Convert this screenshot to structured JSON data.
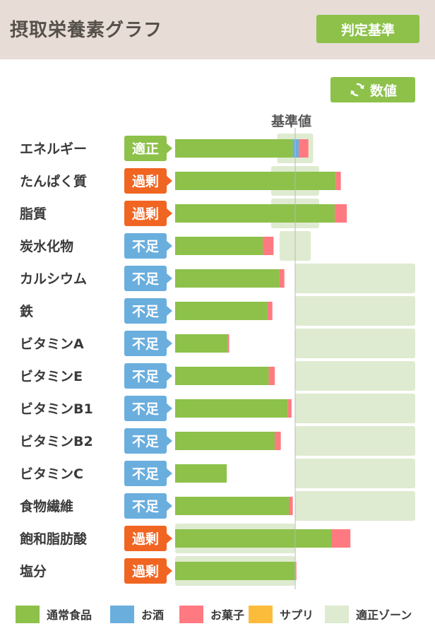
{
  "header": {
    "title": "摂取栄養素グラフ",
    "criteria_button": "判定基準"
  },
  "toolbar": {
    "values_button": "数値",
    "values_icon": "refresh-icon"
  },
  "colors": {
    "normal_food": "#8dc14a",
    "alcohol": "#6aaede",
    "snacks": "#ff7a80",
    "supplement": "#fcbc3b",
    "zone": "#dfebd0",
    "adequate_badge": "#8dc14a",
    "excess_badge": "#f16522",
    "deficient_badge": "#6aaede",
    "reference_line": "#b9b9b9"
  },
  "chart_data": {
    "type": "bar",
    "orientation": "horizontal",
    "stacked": true,
    "reference_label": "基準値",
    "unit": "percent_of_reference",
    "xlim": [
      0,
      200
    ],
    "categories": [
      "エネルギー",
      "たんぱく質",
      "脂質",
      "炭水化物",
      "カルシウム",
      "鉄",
      "ビタミンA",
      "ビタミンE",
      "ビタミンB1",
      "ビタミンB2",
      "ビタミンC",
      "食物繊維",
      "飽和脂肪酸",
      "塩分"
    ],
    "status": [
      "適正",
      "過剰",
      "過剰",
      "不足",
      "不足",
      "不足",
      "不足",
      "不足",
      "不足",
      "不足",
      "不足",
      "不足",
      "過剰",
      "過剰"
    ],
    "series": [
      {
        "name": "通常食品",
        "key": "normal_food",
        "values": [
          98,
          134,
          133,
          73,
          87,
          77,
          44,
          78,
          94,
          83,
          43,
          95,
          130,
          100
        ]
      },
      {
        "name": "お酒",
        "key": "alcohol",
        "values": [
          5,
          0,
          0,
          0,
          0,
          0,
          0,
          0,
          0,
          0,
          0,
          0,
          0,
          0
        ]
      },
      {
        "name": "お菓子",
        "key": "snacks",
        "values": [
          8,
          4,
          10,
          9,
          4,
          4,
          1,
          5,
          3,
          5,
          0,
          3,
          16,
          1
        ]
      },
      {
        "name": "サプリ",
        "key": "supplement",
        "values": [
          0,
          0,
          0,
          0,
          0,
          0,
          0,
          0,
          0,
          0,
          0,
          0,
          0,
          0
        ]
      }
    ],
    "zone_name": "適正ゾーン",
    "zones": [
      [
        85,
        115
      ],
      [
        80,
        120
      ],
      [
        80,
        120
      ],
      [
        87,
        113
      ],
      [
        100,
        200
      ],
      [
        100,
        200
      ],
      [
        100,
        200
      ],
      [
        100,
        200
      ],
      [
        100,
        200
      ],
      [
        100,
        200
      ],
      [
        100,
        200
      ],
      [
        100,
        200
      ],
      [
        0,
        100
      ],
      [
        0,
        100
      ]
    ]
  }
}
